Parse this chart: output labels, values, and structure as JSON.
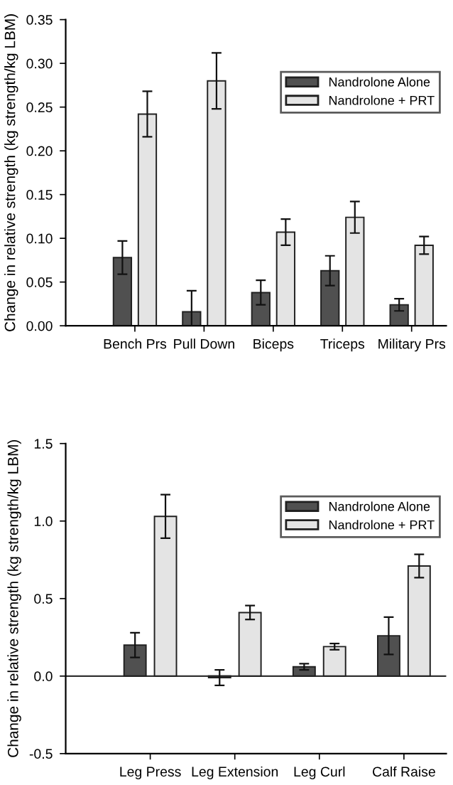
{
  "chart_data": [
    {
      "type": "bar",
      "ylabel": "Change in relative strength (kg strength/kg LBM)",
      "categories": [
        "Bench Prs",
        "Pull Down",
        "Biceps",
        "Triceps",
        "Military Prs"
      ],
      "series": [
        {
          "name": "Nandrolone Alone",
          "color": "#505050",
          "values": [
            0.078,
            0.016,
            0.038,
            0.063,
            0.024
          ],
          "errors": [
            0.019,
            0.024,
            0.014,
            0.017,
            0.007
          ]
        },
        {
          "name": "Nandrolone + PRT",
          "color": "#e4e4e4",
          "values": [
            0.242,
            0.28,
            0.107,
            0.124,
            0.092
          ],
          "errors": [
            0.026,
            0.032,
            0.015,
            0.018,
            0.01
          ]
        }
      ],
      "ylim": [
        0,
        0.35
      ],
      "yticks": [
        {
          "value": 0,
          "label": "0.00"
        },
        {
          "value": 0.05,
          "label": "0.05"
        },
        {
          "value": 0.1,
          "label": "0.10"
        },
        {
          "value": 0.15,
          "label": "0.15"
        },
        {
          "value": 0.2,
          "label": "0.20"
        },
        {
          "value": 0.25,
          "label": "0.25"
        },
        {
          "value": 0.3,
          "label": "0.30"
        },
        {
          "value": 0.35,
          "label": "0.35"
        }
      ],
      "legend": "top right",
      "grid": false
    },
    {
      "type": "bar",
      "ylabel": "Change in relative strength (kg strength/kg LBM)",
      "categories": [
        "Leg Press",
        "Leg Extension",
        "Leg Curl",
        "Calf Raise"
      ],
      "series": [
        {
          "name": "Nandrolone Alone",
          "color": "#505050",
          "values": [
            0.2,
            -0.01,
            0.06,
            0.26
          ],
          "errors": [
            0.08,
            0.05,
            0.02,
            0.12
          ]
        },
        {
          "name": "Nandrolone + PRT",
          "color": "#e4e4e4",
          "values": [
            1.03,
            0.41,
            0.19,
            0.71
          ],
          "errors": [
            0.14,
            0.045,
            0.02,
            0.075
          ]
        }
      ],
      "ylim": [
        -0.5,
        1.5
      ],
      "yticks": [
        {
          "value": -0.5,
          "label": "-0.5"
        },
        {
          "value": 0,
          "label": "0.0"
        },
        {
          "value": 0.5,
          "label": "0.5"
        },
        {
          "value": 1.0,
          "label": "1.0"
        },
        {
          "value": 1.5,
          "label": "1.5"
        }
      ],
      "ref_lines": [
        {
          "axis": "y",
          "value": 0,
          "color": "#333333"
        }
      ],
      "legend": "top right",
      "grid": false
    }
  ]
}
